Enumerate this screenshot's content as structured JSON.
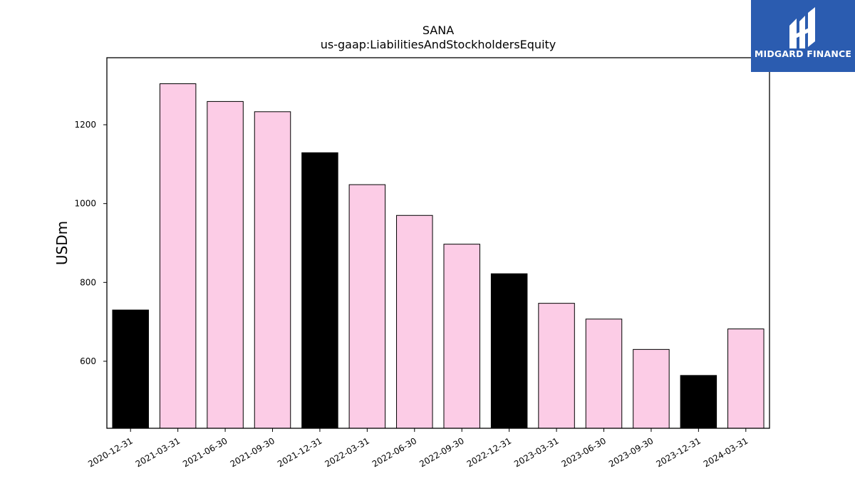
{
  "chart_data": {
    "type": "bar",
    "title": "SANA",
    "subtitle": "us-gaap:LiabilitiesAndStockholdersEquity",
    "ylabel": "USDm",
    "xlabel": "",
    "ylim": [
      430,
      1370
    ],
    "yticks": [
      600,
      800,
      1000,
      1200
    ],
    "categories": [
      "2020-12-31",
      "2021-03-31",
      "2021-06-30",
      "2021-09-30",
      "2021-12-31",
      "2022-03-31",
      "2022-06-30",
      "2022-09-30",
      "2022-12-31",
      "2023-03-31",
      "2023-06-30",
      "2023-09-30",
      "2023-12-31",
      "2024-03-31"
    ],
    "values": [
      730,
      1304,
      1259,
      1233,
      1129,
      1048,
      970,
      897,
      822,
      747,
      707,
      630,
      564,
      682
    ],
    "colors": [
      "#000000",
      "#fccce6",
      "#fccce6",
      "#fccce6",
      "#000000",
      "#fccce6",
      "#fccce6",
      "#fccce6",
      "#000000",
      "#fccce6",
      "#fccce6",
      "#fccce6",
      "#000000",
      "#fccce6"
    ],
    "grid": false,
    "legend": "none"
  },
  "logo": {
    "text": "MIDGARD FINANCE",
    "background": "#2b5cb0"
  }
}
